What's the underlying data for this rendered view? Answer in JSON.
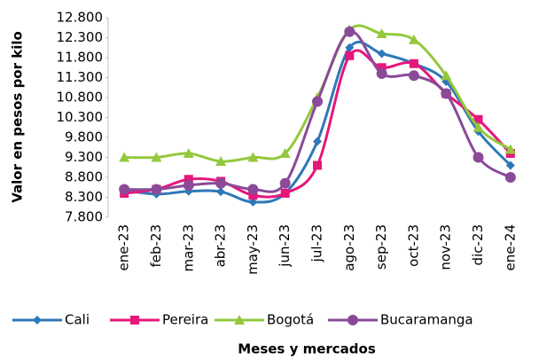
{
  "chart_data": {
    "type": "line",
    "y_label": "Valor en pesos por kilo",
    "x_label": "Meses y mercados",
    "categories": [
      "ene-23",
      "feb-23",
      "mar-23",
      "abr-23",
      "may-23",
      "jun-23",
      "jul-23",
      "ago-23",
      "sep-23",
      "oct-23",
      "nov-23",
      "dic-23",
      "ene-24"
    ],
    "series": [
      {
        "name": "Cali",
        "color": "#2e78b7",
        "marker": "diamond",
        "values": [
          8480,
          8380,
          8450,
          8440,
          8180,
          8400,
          9700,
          12050,
          11900,
          11650,
          11200,
          9950,
          9100
        ]
      },
      {
        "name": "Pereira",
        "color": "#e5177b",
        "marker": "square",
        "values": [
          8400,
          8500,
          8750,
          8700,
          8350,
          8400,
          9100,
          11850,
          11550,
          11650,
          10900,
          10250,
          9400
        ]
      },
      {
        "name": "Bogotá",
        "color": "#94c83d",
        "marker": "triangle",
        "values": [
          9300,
          9300,
          9400,
          9200,
          9300,
          9400,
          10800,
          12500,
          12400,
          12250,
          11350,
          10050,
          9500
        ]
      },
      {
        "name": "Bucaramanga",
        "color": "#8a4a98",
        "marker": "circle",
        "values": [
          8500,
          8500,
          8600,
          8650,
          8500,
          8650,
          10700,
          12450,
          11400,
          11350,
          10900,
          9300,
          8800
        ]
      }
    ],
    "ylim": [
      7800,
      12800
    ],
    "yticks": [
      {
        "value": 12800,
        "label": "12.800"
      },
      {
        "value": 12300,
        "label": "12.300"
      },
      {
        "value": 11800,
        "label": "11.800"
      },
      {
        "value": 11300,
        "label": "11.300"
      },
      {
        "value": 10800,
        "label": "10.800"
      },
      {
        "value": 10300,
        "label": "10.300"
      },
      {
        "value": 9800,
        "label": "9.800"
      },
      {
        "value": 9300,
        "label": "9.300"
      },
      {
        "value": 8800,
        "label": "8.800"
      },
      {
        "value": 8300,
        "label": "8.300"
      },
      {
        "value": 7800,
        "label": "7.800"
      }
    ],
    "grid": false,
    "legend": "bottom"
  }
}
